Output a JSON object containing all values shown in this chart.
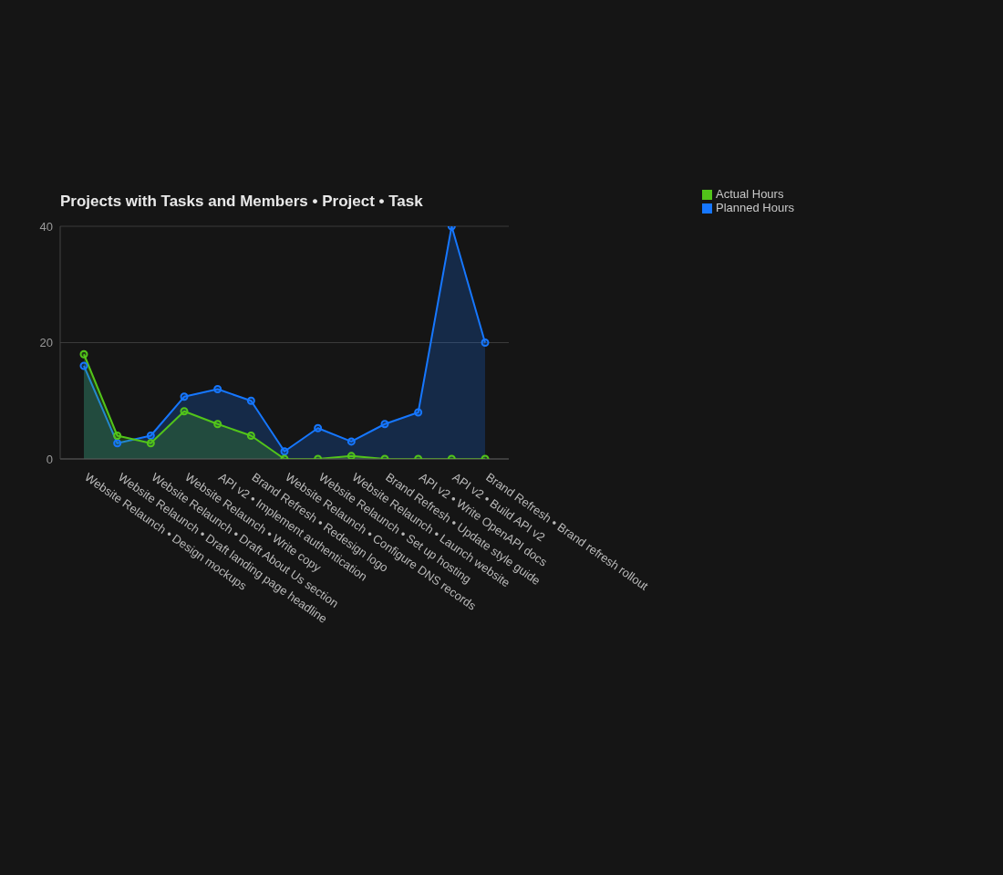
{
  "chart_data": {
    "type": "area",
    "title": "Projects with Tasks and Members • Project • Task",
    "categories": [
      "Website Relaunch • Design mockups",
      "Website Relaunch • Draft landing page headline",
      "Website Relaunch • Draft About Us section",
      "Website Relaunch • Write copy",
      "API v2 • Implement authentication",
      "Brand Refresh • Redesign logo",
      "Website Relaunch • Configure DNS records",
      "Website Relaunch • Set up hosting",
      "Website Relaunch • Launch website",
      "Brand Refresh • Update style guide",
      "API v2 • Write OpenAPI docs",
      "API v2 • Build API v2",
      "Brand Refresh • Brand refresh rollout"
    ],
    "series": [
      {
        "name": "Planned Hours",
        "color": "#1677ff",
        "values": [
          16,
          2.7,
          4,
          10.7,
          12,
          10,
          1.3,
          5.3,
          3,
          6,
          8,
          40,
          20
        ]
      },
      {
        "name": "Actual Hours",
        "color": "#52c41a",
        "values": [
          18,
          4,
          2.7,
          8.2,
          6,
          4,
          0,
          0,
          0.5,
          0,
          0,
          0,
          0
        ]
      }
    ],
    "ylim": [
      0,
      40
    ],
    "yticks": [
      0,
      20,
      40
    ],
    "grid": "y",
    "legend": "top right",
    "marker": "circle",
    "line_style": "solid"
  }
}
